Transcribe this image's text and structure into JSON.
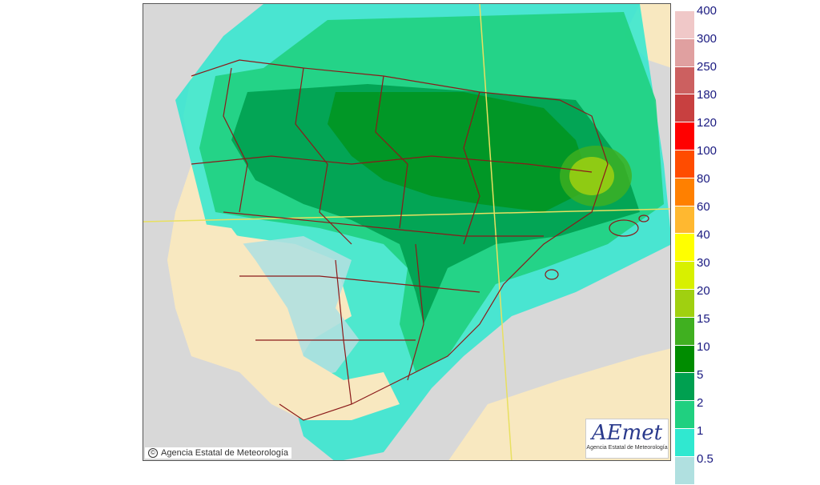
{
  "copyright": {
    "text": "Agencia Estatal de Meteorología"
  },
  "logo": {
    "text": "AEmet",
    "subtitle": "Agencia Estatal de Meteorología"
  },
  "legend": {
    "levels": [
      {
        "label": "400",
        "color": "#f0c8c8"
      },
      {
        "label": "300",
        "color": "#e0a0a0"
      },
      {
        "label": "250",
        "color": "#cc6060"
      },
      {
        "label": "180",
        "color": "#c84040"
      },
      {
        "label": "120",
        "color": "#ff0000"
      },
      {
        "label": "100",
        "color": "#ff4c00"
      },
      {
        "label": "80",
        "color": "#ff8000"
      },
      {
        "label": "60",
        "color": "#ffb830"
      },
      {
        "label": "40",
        "color": "#ffff00"
      },
      {
        "label": "30",
        "color": "#d8f000"
      },
      {
        "label": "20",
        "color": "#a0d010"
      },
      {
        "label": "15",
        "color": "#40b020"
      },
      {
        "label": "10",
        "color": "#008c00"
      },
      {
        "label": "5",
        "color": "#00a050"
      },
      {
        "label": "2",
        "color": "#20d080"
      },
      {
        "label": "1",
        "color": "#30e8d0"
      },
      {
        "label": "0.5",
        "color": "#b0e0e0"
      }
    ]
  },
  "colors": {
    "land_dry": "#f8e8c0",
    "sea": "#d8d8d8",
    "border_line": "#8b1a1a",
    "grid_line": "#e8e060"
  }
}
